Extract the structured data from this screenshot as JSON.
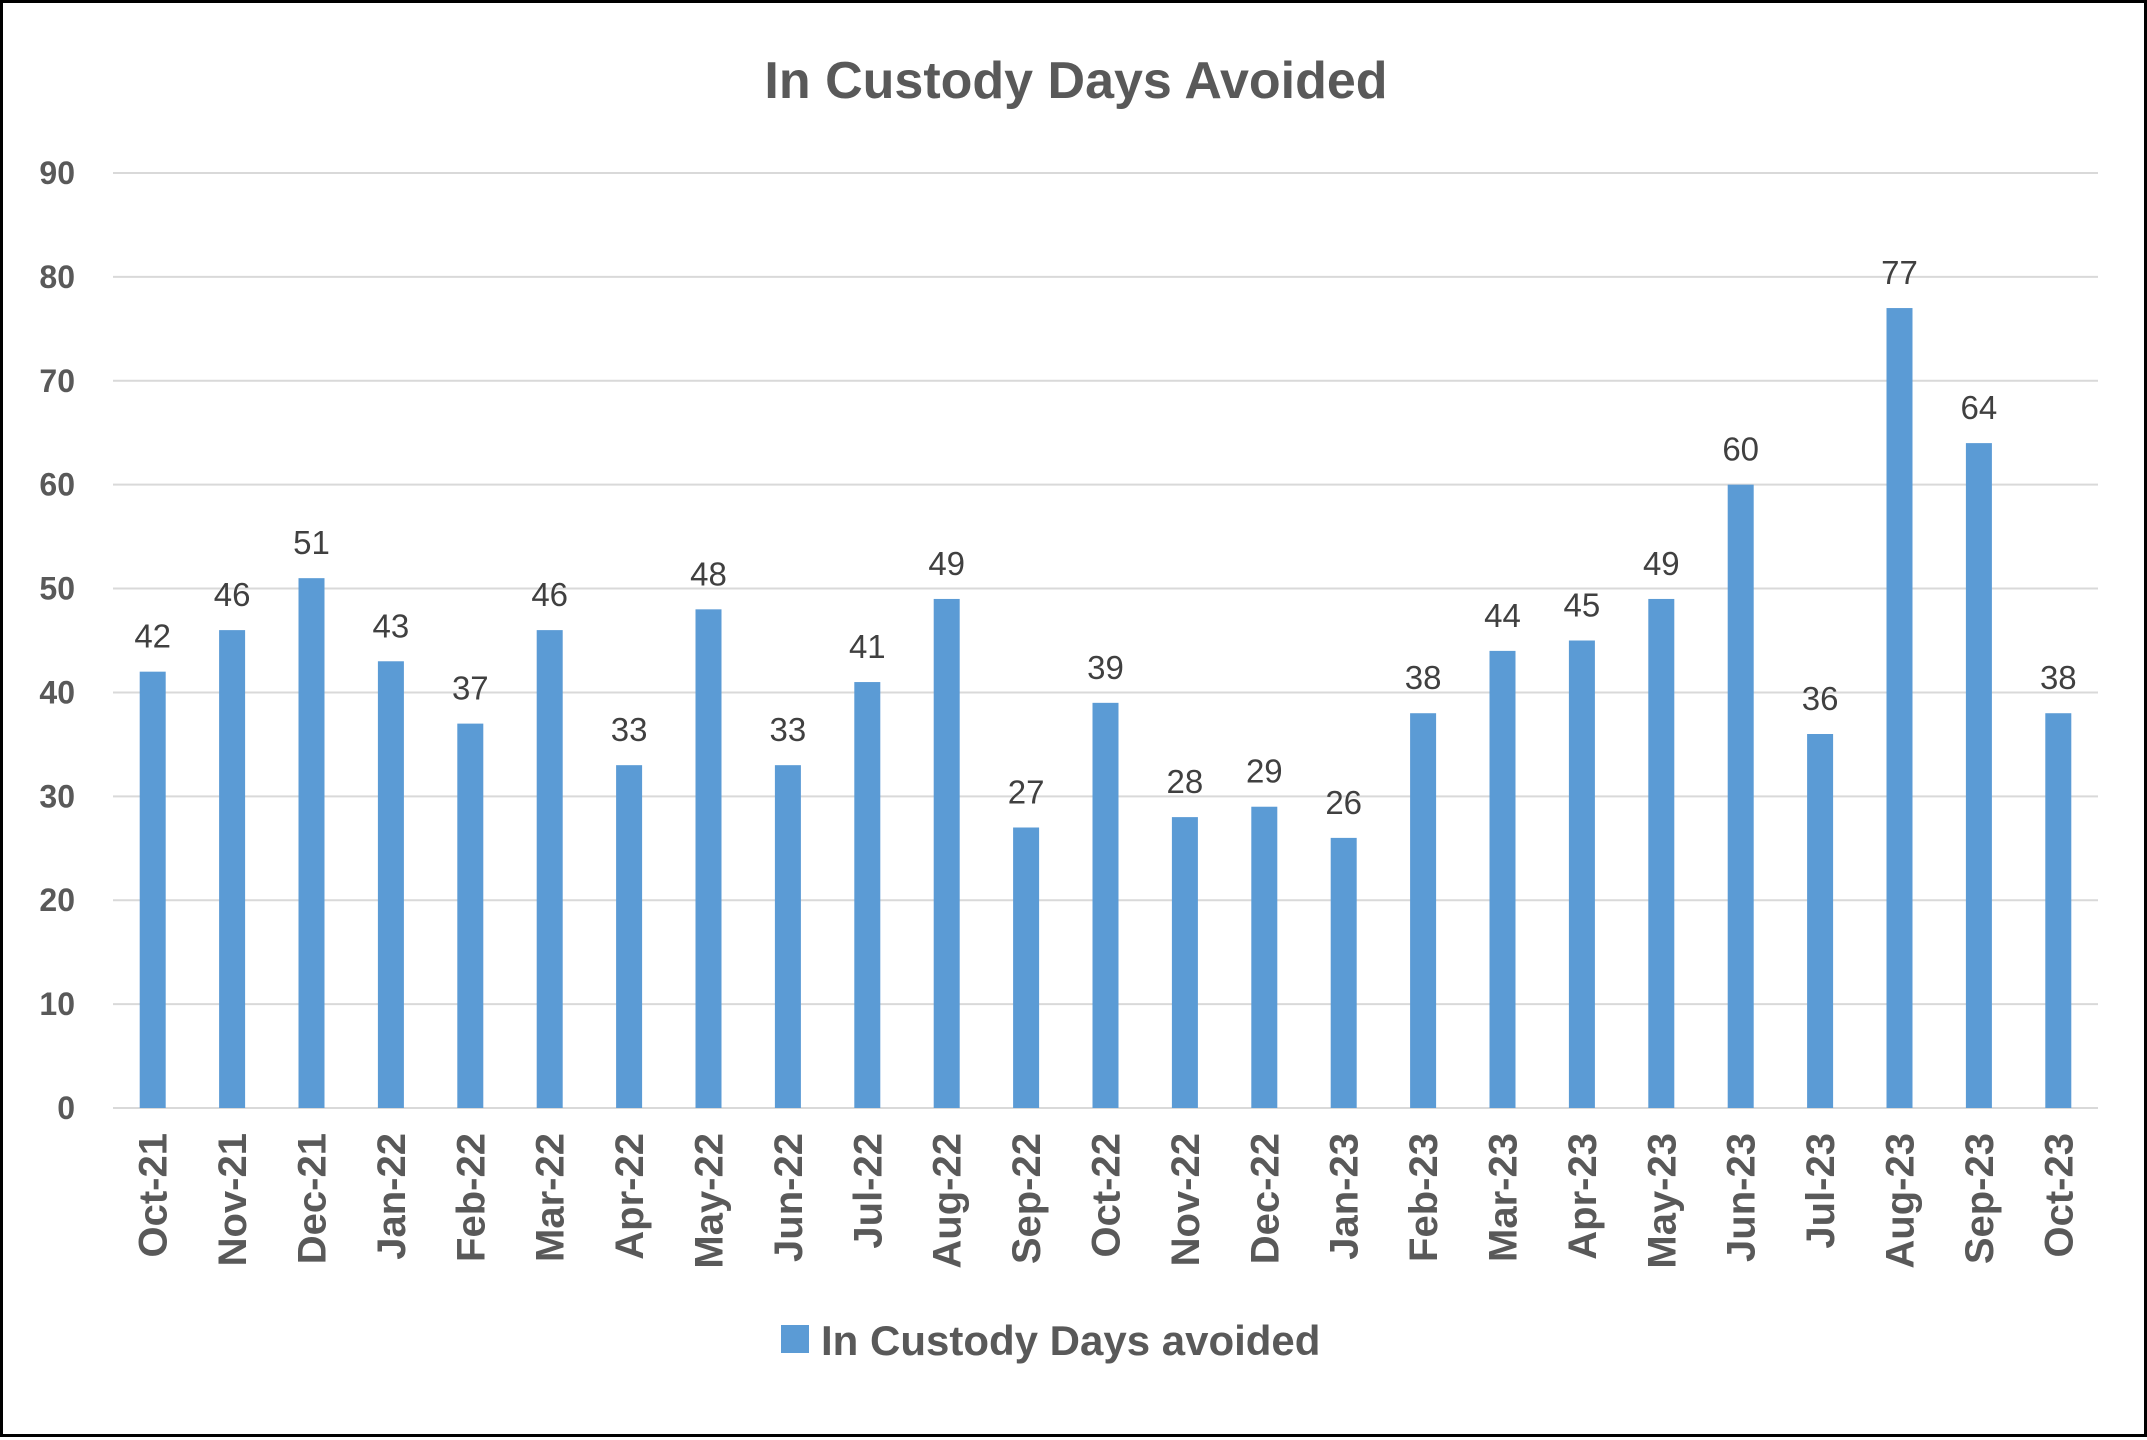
{
  "chart_data": {
    "type": "bar",
    "title": "In Custody Days Avoided",
    "xlabel": "",
    "ylabel": "",
    "ylim": [
      0,
      90
    ],
    "yticks": [
      0,
      10,
      20,
      30,
      40,
      50,
      60,
      70,
      80,
      90
    ],
    "grid": true,
    "legend": "bottom",
    "categories": [
      "Oct-21",
      "Nov-21",
      "Dec-21",
      "Jan-22",
      "Feb-22",
      "Mar-22",
      "Apr-22",
      "May-22",
      "Jun-22",
      "Jul-22",
      "Aug-22",
      "Sep-22",
      "Oct-22",
      "Nov-22",
      "Dec-22",
      "Jan-23",
      "Feb-23",
      "Mar-23",
      "Apr-23",
      "May-23",
      "Jun-23",
      "Jul-23",
      "Aug-23",
      "Sep-23",
      "Oct-23"
    ],
    "series": [
      {
        "name": "In Custody Days avoided",
        "color": "#5b9bd5",
        "values": [
          42,
          46,
          51,
          43,
          37,
          46,
          33,
          48,
          33,
          41,
          49,
          27,
          39,
          28,
          29,
          26,
          38,
          44,
          45,
          49,
          60,
          36,
          77,
          64,
          38
        ]
      }
    ],
    "data_labels": true
  }
}
